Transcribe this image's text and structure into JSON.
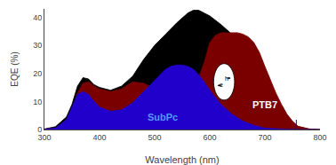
{
  "chart_data": {
    "type": "area",
    "xlabel": "Wavelength (nm)",
    "ylabel": "EQE (%)",
    "xlim": [
      300,
      800
    ],
    "ylim": [
      0,
      43
    ],
    "xticks": [
      300,
      400,
      500,
      600,
      700,
      800
    ],
    "yticks": [
      0,
      10,
      20,
      30,
      40
    ],
    "grid": false,
    "series": [
      {
        "color": "#000000",
        "x": [
          300,
          320,
          340,
          350,
          360,
          370,
          380,
          390,
          400,
          420,
          440,
          460,
          480,
          500,
          520,
          540,
          560,
          570,
          580,
          590,
          600,
          620,
          640,
          660,
          680,
          700,
          710,
          720,
          730,
          740,
          750,
          760,
          780,
          800
        ],
        "values": [
          0.2,
          1.0,
          4.5,
          9.0,
          15.5,
          18.5,
          18.0,
          16.0,
          15.0,
          14.0,
          15.5,
          19.0,
          25.0,
          30.0,
          34.0,
          38.0,
          41.5,
          42.5,
          42.5,
          41.5,
          40.5,
          37.5,
          34.0,
          29.5,
          22.0,
          14.0,
          11.0,
          8.0,
          5.5,
          3.5,
          2.0,
          1.0,
          0.2,
          0.0
        ]
      },
      {
        "color": "#7a0000",
        "x": [
          300,
          320,
          340,
          350,
          360,
          370,
          380,
          390,
          400,
          420,
          440,
          460,
          480,
          500,
          510,
          520,
          530,
          540,
          550,
          560,
          570,
          580,
          590,
          600,
          610,
          620,
          630,
          640,
          650,
          660,
          670,
          680,
          690,
          700,
          710,
          720,
          730,
          740,
          750,
          760,
          780,
          800
        ],
        "values": [
          0.1,
          0.5,
          3.0,
          7.0,
          13.0,
          16.5,
          17.0,
          15.5,
          14.5,
          13.5,
          14.5,
          17.0,
          16.5,
          14.5,
          13.0,
          11.5,
          10.5,
          10.0,
          10.5,
          12.0,
          14.5,
          18.5,
          24.0,
          31.0,
          33.5,
          34.5,
          34.5,
          34.5,
          34.5,
          34.0,
          33.0,
          31.0,
          27.5,
          22.5,
          17.5,
          13.0,
          9.0,
          5.5,
          3.0,
          1.2,
          0.2,
          0.0
        ]
      },
      {
        "color": "#2200cc",
        "x": [
          300,
          320,
          340,
          350,
          360,
          370,
          380,
          390,
          400,
          420,
          440,
          460,
          480,
          500,
          510,
          520,
          530,
          540,
          550,
          560,
          570,
          580,
          590,
          600,
          620,
          640,
          660,
          680,
          700,
          720,
          740,
          760,
          780,
          800
        ],
        "values": [
          0.1,
          0.5,
          3.5,
          8.0,
          12.5,
          13.5,
          12.5,
          10.0,
          8.0,
          6.5,
          7.0,
          9.5,
          13.5,
          17.5,
          19.5,
          21.5,
          22.5,
          23.0,
          23.0,
          22.5,
          21.5,
          19.5,
          17.0,
          14.0,
          9.0,
          5.5,
          3.0,
          1.5,
          0.5,
          0.2,
          0.1,
          0.0,
          0.0,
          0.0
        ]
      },
      {
        "type": "line",
        "color": "blue",
        "x": [
          757,
          757
        ],
        "values": [
          0,
          3.5
        ]
      }
    ],
    "ellipse": {
      "x": [
        607,
        645
      ],
      "y": [
        10.5,
        23.5
      ],
      "color": "#ffffff"
    },
    "arrows": [
      {
        "x": [
          624.1,
          613.84
        ],
        "y": [
          15.7,
          15.7
        ]
      },
      {
        "x": [
          627.9,
          638.16
        ],
        "y": [
          18.3,
          18.3
        ]
      }
    ],
    "annotations": [
      {
        "text": "SubPc",
        "x": 515,
        "y": 4.5,
        "color": "#5599ff"
      },
      {
        "text": "PTB7",
        "x": 700,
        "y": 9.0,
        "color": "#ffffff"
      },
      {
        "text": "e",
        "x": 621.44,
        "y": 15.96,
        "color": "#000000"
      },
      {
        "text": "h",
        "x": 630.56,
        "y": 18.3,
        "color": "#000000"
      }
    ]
  }
}
